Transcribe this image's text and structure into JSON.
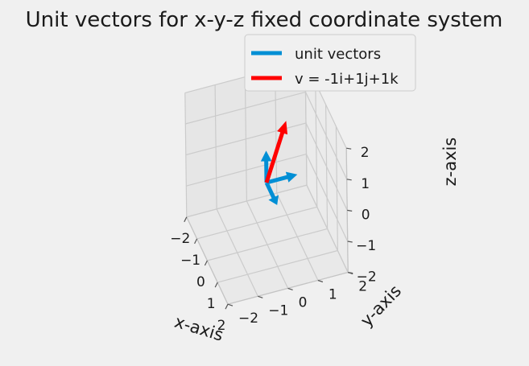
{
  "chart_data": {
    "type": "3d-quiver",
    "title": "Unit vectors for x-y-z fixed coordinate system",
    "xlabel": "x-axis",
    "ylabel": "y-axis",
    "zlabel": "z-axis",
    "xlim": [
      -2,
      2
    ],
    "ylim": [
      -2,
      2
    ],
    "zlim": [
      -2,
      2
    ],
    "xticks": [
      "−2",
      "−1",
      "0",
      "1",
      "2"
    ],
    "yticks": [
      "−2",
      "−1",
      "0",
      "1",
      "2"
    ],
    "zticks": [
      "−2",
      "−1",
      "0",
      "1",
      "2"
    ],
    "grid": true,
    "legend_position": "top-right",
    "series": [
      {
        "name": "unit vectors",
        "color": "#008fd5",
        "vectors": [
          {
            "origin": [
              0,
              0,
              0
            ],
            "direction": [
              1,
              0,
              0
            ]
          },
          {
            "origin": [
              0,
              0,
              0
            ],
            "direction": [
              0,
              1,
              0
            ]
          },
          {
            "origin": [
              0,
              0,
              0
            ],
            "direction": [
              0,
              0,
              1
            ]
          }
        ]
      },
      {
        "name": "v = -1i+1j+1k",
        "color": "#ff0000",
        "vectors": [
          {
            "origin": [
              0,
              0,
              0
            ],
            "direction": [
              -1,
              1,
              1
            ]
          }
        ]
      }
    ]
  }
}
